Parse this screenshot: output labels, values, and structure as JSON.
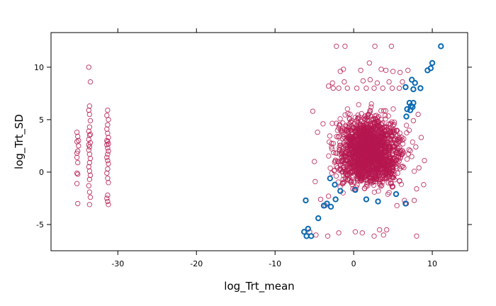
{
  "chart_data": {
    "type": "scatter",
    "title": "",
    "xlabel": "log_Trt_mean",
    "ylabel": "log_Trt_SD",
    "xlim": [
      -38.5,
      14.5
    ],
    "ylim": [
      -7.5,
      13.3
    ],
    "x_ticks": [
      -30,
      -20,
      -10,
      0,
      10
    ],
    "y_ticks": [
      -5,
      0,
      5,
      10
    ],
    "grid": false,
    "legend": "none",
    "colors": {
      "series_a": "#b5174f",
      "series_b": "#0c6ab3",
      "frame": "#000000"
    },
    "series": [
      {
        "marker": "open-circle",
        "color": "#b5174f",
        "points": [
          [
            -35.2,
            3.8
          ],
          [
            -35.1,
            3.4
          ],
          [
            -35.2,
            2.9
          ],
          [
            -35.0,
            2.5
          ],
          [
            -35.1,
            2.0
          ],
          [
            -35.2,
            1.4
          ],
          [
            -35.1,
            0.9
          ],
          [
            -35.2,
            -0.1
          ],
          [
            -35.1,
            -0.2
          ],
          [
            -35.2,
            -1.1
          ],
          [
            -35.1,
            -3.0
          ],
          [
            -35.0,
            3.0
          ],
          [
            -35.2,
            1.8
          ],
          [
            -33.7,
            10.0
          ],
          [
            -33.5,
            8.6
          ],
          [
            -33.6,
            6.3
          ],
          [
            -33.7,
            5.9
          ],
          [
            -33.6,
            5.5
          ],
          [
            -33.5,
            4.9
          ],
          [
            -33.6,
            4.3
          ],
          [
            -33.7,
            3.9
          ],
          [
            -33.6,
            3.5
          ],
          [
            -33.7,
            3.1
          ],
          [
            -33.5,
            2.8
          ],
          [
            -33.6,
            2.4
          ],
          [
            -33.7,
            2.1
          ],
          [
            -33.6,
            1.7
          ],
          [
            -33.5,
            1.3
          ],
          [
            -33.6,
            0.9
          ],
          [
            -33.7,
            0.5
          ],
          [
            -33.6,
            0.1
          ],
          [
            -33.5,
            -0.3
          ],
          [
            -33.6,
            -0.7
          ],
          [
            -33.7,
            -1.3
          ],
          [
            -33.6,
            -1.9
          ],
          [
            -33.5,
            -2.4
          ],
          [
            -33.6,
            -3.1
          ],
          [
            -33.5,
            3.6
          ],
          [
            -33.7,
            2.6
          ],
          [
            -31.3,
            5.9
          ],
          [
            -31.4,
            5.4
          ],
          [
            -31.2,
            5.0
          ],
          [
            -31.3,
            4.5
          ],
          [
            -31.4,
            4.1
          ],
          [
            -31.3,
            3.7
          ],
          [
            -31.2,
            3.3
          ],
          [
            -31.3,
            2.9
          ],
          [
            -31.4,
            2.6
          ],
          [
            -31.3,
            2.3
          ],
          [
            -31.2,
            2.0
          ],
          [
            -31.3,
            1.7
          ],
          [
            -31.4,
            1.4
          ],
          [
            -31.3,
            1.1
          ],
          [
            -31.2,
            0.8
          ],
          [
            -31.3,
            0.3
          ],
          [
            -31.4,
            -0.1
          ],
          [
            -31.3,
            -0.6
          ],
          [
            -31.2,
            -1.0
          ],
          [
            -31.3,
            -2.2
          ],
          [
            -31.4,
            -2.5
          ],
          [
            -31.3,
            -2.8
          ],
          [
            -31.2,
            -3.1
          ],
          [
            -31.4,
            3.0
          ],
          [
            -31.2,
            2.7
          ],
          [
            -2.2,
            12.0
          ],
          [
            -1.1,
            12.0
          ],
          [
            2.7,
            12.0
          ],
          [
            4.8,
            12.0
          ],
          [
            -1.3,
            9.8
          ],
          [
            -1.7,
            9.6
          ],
          [
            0.9,
            9.7
          ],
          [
            2.0,
            10.4
          ],
          [
            3.5,
            9.8
          ],
          [
            4.1,
            9.7
          ],
          [
            5.0,
            9.6
          ],
          [
            5.9,
            9.5
          ],
          [
            6.9,
            9.7
          ],
          [
            -2.7,
            8.5
          ],
          [
            -1.2,
            8.6
          ],
          [
            1.2,
            8.7
          ],
          [
            2.1,
            8.8
          ],
          [
            3.0,
            8.5
          ],
          [
            4.5,
            8.6
          ],
          [
            6.2,
            8.6
          ],
          [
            -2.6,
            8.0
          ],
          [
            -1.9,
            8.0
          ],
          [
            -0.8,
            8.0
          ],
          [
            0.4,
            8.0
          ],
          [
            1.6,
            8.0
          ],
          [
            2.6,
            8.0
          ],
          [
            3.7,
            8.0
          ],
          [
            4.9,
            8.0
          ],
          [
            5.8,
            8.0
          ],
          [
            -3.2,
            8.2
          ],
          [
            -5.6,
            -5.7
          ],
          [
            -4.8,
            -6.0
          ],
          [
            -3.3,
            -6.1
          ],
          [
            -1.9,
            -5.8
          ],
          [
            0.2,
            -5.7
          ],
          [
            1.1,
            -5.8
          ],
          [
            2.6,
            -6.1
          ],
          [
            3.3,
            -5.5
          ],
          [
            3.8,
            -6.0
          ],
          [
            4.2,
            -5.5
          ],
          [
            8.0,
            -6.1
          ],
          [
            -5.2,
            5.8
          ],
          [
            -5.0,
            1.0
          ],
          [
            -4.9,
            -0.9
          ],
          [
            -4.6,
            3.8
          ],
          [
            -3.9,
            4.6
          ],
          [
            -3.2,
            -2.3
          ],
          [
            7.6,
            4.9
          ],
          [
            7.9,
            2.4
          ],
          [
            8.0,
            -1.6
          ],
          [
            8.3,
            0.4
          ],
          [
            8.6,
            3.3
          ],
          [
            8.9,
            -1.2
          ],
          [
            9.0,
            1.1
          ],
          [
            8.2,
            5.5
          ],
          [
            7.7,
            -2.7
          ],
          [
            -4.2,
            -2.6
          ],
          [
            -3.6,
            -3.2
          ],
          [
            6.7,
            -3.0
          ],
          [
            5.5,
            -3.2
          ]
        ]
      },
      {
        "marker": "open-circle",
        "color": "#0c6ab3",
        "points": [
          [
            11.1,
            12.0
          ],
          [
            10.0,
            10.4
          ],
          [
            9.4,
            9.7
          ],
          [
            9.8,
            9.9
          ],
          [
            7.4,
            8.8
          ],
          [
            7.8,
            8.5
          ],
          [
            8.5,
            8.0
          ],
          [
            6.6,
            8.1
          ],
          [
            7.6,
            7.9
          ],
          [
            7.1,
            6.6
          ],
          [
            7.3,
            6.3
          ],
          [
            7.5,
            6.2
          ],
          [
            7.6,
            6.6
          ],
          [
            6.8,
            6.0
          ],
          [
            7.2,
            5.9
          ],
          [
            -6.1,
            -2.7
          ],
          [
            -4.5,
            -4.4
          ],
          [
            -5.8,
            -5.4
          ],
          [
            -6.3,
            -5.7
          ],
          [
            -6.0,
            -6.1
          ],
          [
            -5.4,
            -6.1
          ],
          [
            -3.4,
            -3.0
          ],
          [
            -2.9,
            -3.3
          ],
          [
            -3.8,
            -3.2
          ],
          [
            -2.3,
            -2.6
          ],
          [
            -1.7,
            -1.8
          ],
          [
            0.2,
            -1.7
          ],
          [
            1.6,
            -2.6
          ],
          [
            3.1,
            -2.8
          ],
          [
            5.4,
            -2.1
          ],
          [
            6.6,
            -3.0
          ],
          [
            -3.0,
            -0.6
          ],
          [
            6.7,
            5.3
          ],
          [
            -2.4,
            -1.2
          ]
        ]
      }
    ],
    "dense_clusters": [
      {
        "color": "#b5174f",
        "x_range": [
          -4.0,
          8.0
        ],
        "y_range": [
          -3.3,
          6.5
        ],
        "x_center": 2.0,
        "y_center": 2.0,
        "count": 1800
      }
    ]
  }
}
